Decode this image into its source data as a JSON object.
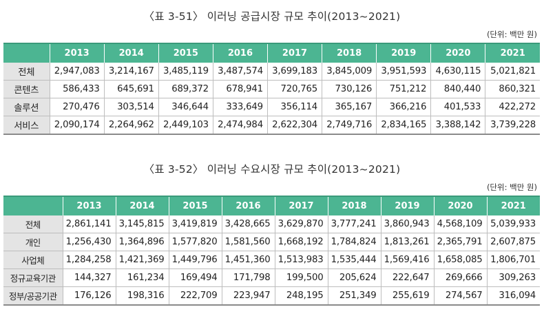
{
  "table1": {
    "caption": "〈표 3-51〉 이러닝 공급시장 규모 추이(2013~2021)",
    "unit": "(단위: 백만 원)",
    "header": [
      "",
      "2013",
      "2014",
      "2015",
      "2016",
      "2017",
      "2018",
      "2019",
      "2020",
      "2021"
    ],
    "rows": [
      [
        "전체",
        "2,947,083",
        "3,214,167",
        "3,485,119",
        "3,487,574",
        "3,699,183",
        "3,845,009",
        "3,951,593",
        "4,630,115",
        "5,021,821"
      ],
      [
        "콘텐츠",
        "586,433",
        "645,691",
        "689,372",
        "678,941",
        "720,765",
        "730,126",
        "751,212",
        "840,440",
        "860,321"
      ],
      [
        "솔루션",
        "270,476",
        "303,514",
        "346,644",
        "333,649",
        "356,114",
        "365,167",
        "366,216",
        "401,533",
        "422,272"
      ],
      [
        "서비스",
        "2,090,174",
        "2,264,962",
        "2,449,103",
        "2,474,984",
        "2,622,304",
        "2,749,716",
        "2,834,165",
        "3,388,142",
        "3,739,228"
      ]
    ]
  },
  "table2": {
    "caption": "〈표 3-52〉 이러닝 수요시장 규모 추이(2013~2021)",
    "unit": "(단위: 백만 원)",
    "header": [
      "",
      "2013",
      "2014",
      "2015",
      "2016",
      "2017",
      "2018",
      "2019",
      "2020",
      "2021"
    ],
    "rows": [
      [
        "전체",
        "2,861,141",
        "3,145,815",
        "3,419,819",
        "3,428,665",
        "3,629,870",
        "3,777,241",
        "3,860,943",
        "4,568,109",
        "5,039,933"
      ],
      [
        "개인",
        "1,256,430",
        "1,364,896",
        "1,577,820",
        "1,581,560",
        "1,668,192",
        "1,784,824",
        "1,813,261",
        "2,365,791",
        "2,607,875"
      ],
      [
        "사업체",
        "1,284,258",
        "1,421,369",
        "1,449,796",
        "1,451,360",
        "1,513,983",
        "1,535,444",
        "1,569,416",
        "1,658,085",
        "1,806,701"
      ],
      [
        "정규교육기관",
        "144,327",
        "161,234",
        "169,494",
        "171,798",
        "199,500",
        "205,624",
        "222,647",
        "269,666",
        "309,263"
      ],
      [
        "정부/공공기관",
        "176,126",
        "198,316",
        "222,709",
        "223,947",
        "248,195",
        "251,349",
        "255,619",
        "274,567",
        "316,094"
      ]
    ]
  }
}
